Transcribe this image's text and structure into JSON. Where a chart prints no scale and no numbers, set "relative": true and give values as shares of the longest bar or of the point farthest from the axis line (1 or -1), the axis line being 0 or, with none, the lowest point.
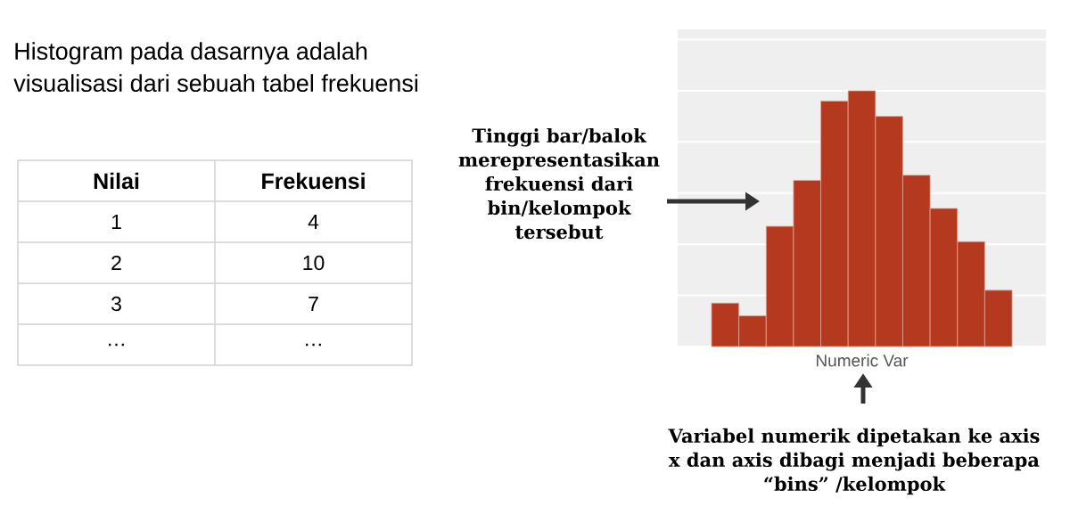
{
  "chart_data": [
    {
      "type": "other",
      "title": "Histogram pada dasarnya adalah visualisasi dari sebuah tabel frekuensi",
      "annotations": [
        "Nilai",
        "Frekuensi",
        "1",
        "4",
        "2",
        "10",
        "3",
        "7",
        "…",
        "…"
      ]
    },
    {
      "type": "bar",
      "categories": [
        null,
        null,
        null,
        null,
        null,
        null,
        null,
        null,
        null,
        null,
        null
      ],
      "values": [
        0.17,
        0.12,
        0.47,
        0.65,
        0.96,
        1,
        0.9,
        0.67,
        0.54,
        0.41,
        0.22
      ],
      "relative": true,
      "color": "#b5391e",
      "xlabel": "Numeric Var",
      "grid": "y",
      "annotations": [
        "Tinggi bar/balok merepresentasikan frekuensi dari bin/kelompok tersebut",
        "Variabel numerik dipetakan ke axis x dan axis dibagi menjadi beberapa “bins” /kelompok"
      ]
    }
  ]
}
